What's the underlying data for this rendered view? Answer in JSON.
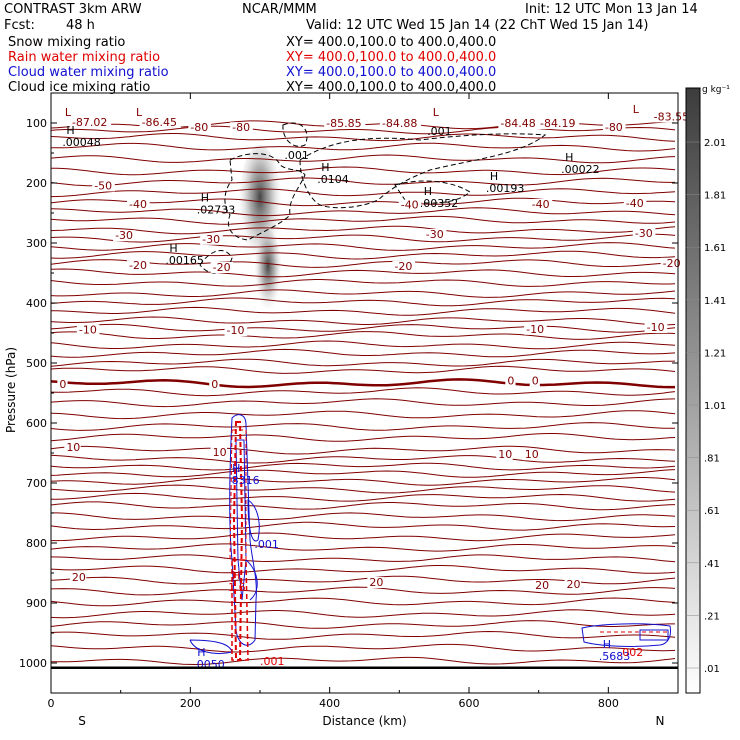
{
  "header": {
    "experiment": "CONTRAST  3km ARW",
    "forecast_label": "Fcst:",
    "forecast_value": "48 h",
    "center": "NCAR/MMM",
    "init": "Init: 12 UTC Mon 13 Jan 14",
    "valid": "Valid: 12 UTC Wed 15 Jan 14 (22 ChT Wed 15 Jan 14)"
  },
  "fields": [
    {
      "name": "Snow mixing ratio",
      "xsec": "XY=  400.0,100.0 to 400.0,400.0",
      "color": "#000000"
    },
    {
      "name": "Rain water mixing ratio",
      "xsec": "XY=  400.0,100.0 to 400.0,400.0",
      "color": "#e00000"
    },
    {
      "name": "Cloud water mixing ratio",
      "xsec": "XY=  400.0,100.0 to 400.0,400.0",
      "color": "#1010d0"
    },
    {
      "name": "Cloud ice mixing ratio",
      "xsec": "XY=  400.0,100.0 to 400.0,400.0",
      "color": "#000000"
    }
  ],
  "chart_data": {
    "type": "line",
    "xlabel": "Distance (km)",
    "ylabel": "Pressure (hPa)",
    "xlim": [
      0,
      900
    ],
    "ylim": [
      1050,
      50
    ],
    "x_ticks": [
      "0",
      "200",
      "400",
      "600",
      "800"
    ],
    "y_ticks": [
      "100",
      "200",
      "300",
      "400",
      "500",
      "600",
      "700",
      "800",
      "900",
      "1000"
    ],
    "x_end_labels": {
      "left": "S",
      "right": "N"
    },
    "colorbar": {
      "unit": "g kg⁻¹",
      "labels": [
        ".01",
        ".21",
        ".41",
        ".61",
        ".81",
        "1.01",
        "1.21",
        "1.41",
        "1.61",
        "1.81",
        "2.01"
      ]
    },
    "temperature_labels": [
      {
        "text": "-87.02",
        "x": 30,
        "p": 103
      },
      {
        "text": "-86.45",
        "x": 130,
        "p": 103
      },
      {
        "text": "-80",
        "x": 200,
        "p": 112
      },
      {
        "text": "-80",
        "x": 260,
        "p": 112
      },
      {
        "text": "-85.85",
        "x": 395,
        "p": 105
      },
      {
        "text": "-84.88",
        "x": 475,
        "p": 105
      },
      {
        "text": "-84.48",
        "x": 645,
        "p": 105
      },
      {
        "text": "-84.19",
        "x": 702,
        "p": 105
      },
      {
        "text": "-83.55",
        "x": 865,
        "p": 94
      },
      {
        "text": "-80",
        "x": 795,
        "p": 112
      },
      {
        "text": "-50",
        "x": 62,
        "p": 209
      },
      {
        "text": "-40",
        "x": 112,
        "p": 240
      },
      {
        "text": "-40",
        "x": 690,
        "p": 240
      },
      {
        "text": "-40",
        "x": 825,
        "p": 238
      },
      {
        "text": "-40",
        "x": 502,
        "p": 241
      },
      {
        "text": "-30",
        "x": 92,
        "p": 292
      },
      {
        "text": "-30",
        "x": 538,
        "p": 290
      },
      {
        "text": "-30",
        "x": 838,
        "p": 288
      },
      {
        "text": "-30",
        "x": 217,
        "p": 298
      },
      {
        "text": "-20",
        "x": 112,
        "p": 342
      },
      {
        "text": "-20",
        "x": 232,
        "p": 345
      },
      {
        "text": "-20",
        "x": 493,
        "p": 343
      },
      {
        "text": "-20",
        "x": 878,
        "p": 338
      },
      {
        "text": "-10",
        "x": 40,
        "p": 449
      },
      {
        "text": "-10",
        "x": 252,
        "p": 450
      },
      {
        "text": "-10",
        "x": 682,
        "p": 448
      },
      {
        "text": "-10",
        "x": 855,
        "p": 445
      },
      {
        "text": "0",
        "x": 12,
        "p": 540
      },
      {
        "text": "0",
        "x": 230,
        "p": 540
      },
      {
        "text": "0",
        "x": 655,
        "p": 534
      },
      {
        "text": "0",
        "x": 690,
        "p": 534
      },
      {
        "text": "10",
        "x": 22,
        "p": 645
      },
      {
        "text": "10",
        "x": 232,
        "p": 653
      },
      {
        "text": "10",
        "x": 642,
        "p": 657
      },
      {
        "text": "10",
        "x": 680,
        "p": 657
      },
      {
        "text": "20",
        "x": 30,
        "p": 862
      },
      {
        "text": "20",
        "x": 457,
        "p": 870
      },
      {
        "text": "20",
        "x": 695,
        "p": 875
      },
      {
        "text": "20",
        "x": 740,
        "p": 873
      }
    ],
    "extrema": [
      {
        "symbol": "L",
        "value": "",
        "x": 20,
        "p": 88,
        "color": "#800000"
      },
      {
        "symbol": "L",
        "value": "",
        "x": 122,
        "p": 88,
        "color": "#800000"
      },
      {
        "symbol": "L",
        "value": "",
        "x": 548,
        "p": 88,
        "color": "#800000"
      },
      {
        "symbol": "L",
        "value": "",
        "x": 835,
        "p": 83,
        "color": "#800000"
      },
      {
        "symbol": "H",
        "value": ".00048",
        "x": 22,
        "p": 118,
        "color": "#000000"
      },
      {
        "symbol": "H",
        "value": ".0104",
        "x": 388,
        "p": 180,
        "color": "#000000"
      },
      {
        "symbol": "H",
        "value": ".00352",
        "x": 535,
        "p": 220,
        "color": "#000000"
      },
      {
        "symbol": "H",
        "value": ".00193",
        "x": 630,
        "p": 195,
        "color": "#000000"
      },
      {
        "symbol": "H",
        "value": ".00022",
        "x": 738,
        "p": 163,
        "color": "#000000"
      },
      {
        "symbol": "H",
        "value": ".02733",
        "x": 215,
        "p": 231,
        "color": "#000000"
      },
      {
        "symbol": "H",
        "value": ".00165",
        "x": 170,
        "p": 315,
        "color": "#000000"
      },
      {
        "symbol": "H",
        "value": ".8316",
        "x": 260,
        "p": 682,
        "color": "#1010d0"
      },
      {
        "symbol": "H",
        "value": "1.6",
        "x": 260,
        "p": 860,
        "color": "#e00000"
      },
      {
        "symbol": "H",
        "value": ".0050",
        "x": 210,
        "p": 988,
        "color": "#1010d0"
      },
      {
        "symbol": "H",
        "value": ".5683",
        "x": 792,
        "p": 975,
        "color": "#1010d0"
      }
    ],
    "contour_labels": [
      {
        "text": ".001",
        "x": 335,
        "p": 160,
        "color": "#000000"
      },
      {
        "text": ".001",
        "x": 540,
        "p": 120,
        "color": "#000000"
      },
      {
        "text": ".001",
        "x": 292,
        "p": 808,
        "color": "#1010d0"
      },
      {
        "text": ".001",
        "x": 300,
        "p": 1003,
        "color": "#e00000"
      },
      {
        "text": ".002",
        "x": 815,
        "p": 988,
        "color": "#e00000"
      }
    ]
  }
}
